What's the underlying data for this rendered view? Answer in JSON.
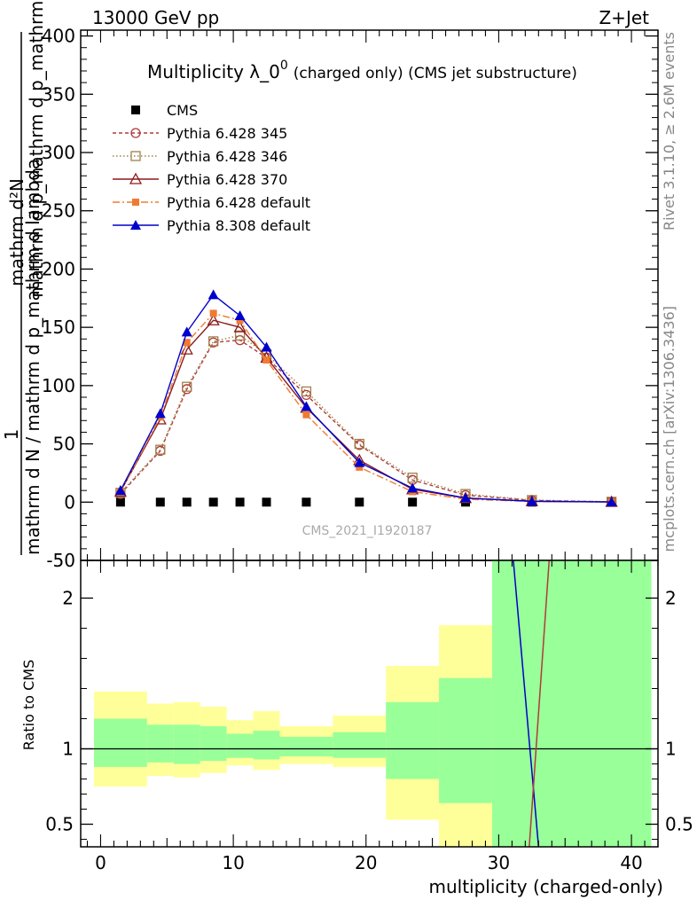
{
  "header": {
    "left": "13000 GeV pp",
    "right": "Z+Jet"
  },
  "side_labels": {
    "rivet": "Rivet 3.1.10, ≥ 2.6M events",
    "mcplots": "mcplots.cern.ch [arXiv:1306.3436]"
  },
  "watermark": "CMS_2021_I1920187",
  "chart_data": [
    {
      "type": "line",
      "title": "Multiplicity λ_0",
      "title_sup": "0",
      "subtitle": "(charged only) (CMS jet substructure)",
      "ylabel_top": "mathrm d²N",
      "ylabel_one": "1",
      "ylabel_bottom": "mathrm d N / mathrm d p_mathrm d lambda",
      "ylabel_overlap": "mathrm d p_mathrm d p_mathrm d lambda",
      "xlim": [
        -1.5,
        42
      ],
      "ylim": [
        -50,
        405
      ],
      "x_ticks": [
        0,
        10,
        20,
        30,
        40
      ],
      "y_ticks": [
        -50,
        0,
        50,
        100,
        150,
        200,
        250,
        300,
        350,
        400
      ],
      "y_minor_step": 10,
      "legend_position": "top-left",
      "series": [
        {
          "name": "CMS",
          "style": "data",
          "color": "#000000",
          "x": [
            1.5,
            4.5,
            6.5,
            8.5,
            10.5,
            12.5,
            15.5,
            19.5,
            23.5,
            27.5,
            32.5,
            38.5
          ],
          "values": [
            0,
            0,
            0,
            0,
            0,
            0,
            0,
            0,
            0,
            0,
            0,
            0
          ]
        },
        {
          "name": "Pythia 6.428 345",
          "style": "circle",
          "dash": "4,3",
          "color": "#b03a3a",
          "x": [
            1.5,
            4.5,
            6.5,
            8.5,
            10.5,
            12.5,
            15.5,
            19.5,
            23.5,
            27.5,
            32.5,
            38.5
          ],
          "values": [
            7,
            44,
            97,
            137,
            139,
            124,
            92,
            49,
            19,
            6,
            1.5,
            0.3
          ]
        },
        {
          "name": "Pythia 6.428 346",
          "style": "square-open",
          "dash": "1.5,2.5",
          "color": "#a0804a",
          "x": [
            1.5,
            4.5,
            6.5,
            8.5,
            10.5,
            12.5,
            15.5,
            19.5,
            23.5,
            27.5,
            32.5,
            38.5
          ],
          "values": [
            8,
            45,
            99,
            138,
            143,
            127,
            95,
            50,
            21,
            7,
            1.8,
            0.3
          ]
        },
        {
          "name": "Pythia 6.428 370",
          "style": "triangle-open",
          "dash": "",
          "color": "#8b1a1a",
          "x": [
            1.5,
            4.5,
            6.5,
            8.5,
            10.5,
            12.5,
            15.5,
            19.5,
            23.5,
            27.5,
            32.5,
            38.5
          ],
          "values": [
            9,
            71,
            131,
            156,
            150,
            124,
            81,
            36,
            11,
            3.5,
            0.8,
            0.2
          ]
        },
        {
          "name": "Pythia 6.428 default",
          "style": "square-filled",
          "dash": "8,3,2,3",
          "color": "#f07b30",
          "x": [
            1.5,
            4.5,
            6.5,
            8.5,
            10.5,
            12.5,
            15.5,
            19.5,
            23.5,
            27.5,
            32.5,
            38.5
          ],
          "values": [
            9,
            73,
            137,
            162,
            156,
            122,
            75,
            30,
            9,
            2.5,
            0.6,
            0.1
          ]
        },
        {
          "name": "Pythia 8.308 default",
          "style": "triangle-filled",
          "dash": "",
          "color": "#0000cc",
          "x": [
            1.5,
            4.5,
            6.5,
            8.5,
            10.5,
            12.5,
            15.5,
            19.5,
            23.5,
            27.5,
            32.5,
            38.5
          ],
          "values": [
            10,
            76,
            146,
            178,
            160,
            133,
            82,
            34,
            12,
            3.5,
            0.7,
            0.15
          ]
        }
      ]
    },
    {
      "type": "area",
      "ylabel": "Ratio to CMS",
      "xlabel": "multiplicity (charged-only)",
      "xlim": [
        -1.5,
        42
      ],
      "ylim": [
        0.35,
        2.25
      ],
      "x_ticks": [
        0,
        10,
        20,
        30,
        40
      ],
      "y_ticks": [
        0.5,
        1,
        2
      ],
      "bins": [
        {
          "lo": -0.5,
          "hi": 3.5,
          "y_lo": 0.75,
          "y_hi": 1.38,
          "g_lo": 0.88,
          "g_hi": 1.2
        },
        {
          "lo": 3.5,
          "hi": 5.5,
          "y_lo": 0.82,
          "y_hi": 1.3,
          "g_lo": 0.91,
          "g_hi": 1.16
        },
        {
          "lo": 5.5,
          "hi": 7.5,
          "y_lo": 0.81,
          "y_hi": 1.31,
          "g_lo": 0.9,
          "g_hi": 1.16
        },
        {
          "lo": 7.5,
          "hi": 9.5,
          "y_lo": 0.84,
          "y_hi": 1.28,
          "g_lo": 0.92,
          "g_hi": 1.15
        },
        {
          "lo": 9.5,
          "hi": 11.5,
          "y_lo": 0.89,
          "y_hi": 1.19,
          "g_lo": 0.94,
          "g_hi": 1.1
        },
        {
          "lo": 11.5,
          "hi": 13.5,
          "y_lo": 0.86,
          "y_hi": 1.25,
          "g_lo": 0.93,
          "g_hi": 1.12
        },
        {
          "lo": 13.5,
          "hi": 17.5,
          "y_lo": 0.9,
          "y_hi": 1.15,
          "g_lo": 0.95,
          "g_hi": 1.08
        },
        {
          "lo": 17.5,
          "hi": 21.5,
          "y_lo": 0.88,
          "y_hi": 1.22,
          "g_lo": 0.94,
          "g_hi": 1.11
        },
        {
          "lo": 21.5,
          "hi": 25.5,
          "y_lo": 0.53,
          "y_hi": 1.55,
          "g_lo": 0.8,
          "g_hi": 1.31
        },
        {
          "lo": 25.5,
          "hi": 29.5,
          "y_lo": 0.3,
          "y_hi": 1.82,
          "g_lo": 0.64,
          "g_hi": 1.47
        },
        {
          "lo": 29.5,
          "hi": 41.5,
          "y_lo": 0.3,
          "y_hi": 2.4,
          "g_lo": 0.3,
          "g_hi": 2.4
        }
      ],
      "ratio_lines": [
        {
          "name": "Pythia 8.308 default",
          "color": "#0000cc",
          "points": [
            [
              31.1,
              2.4
            ],
            [
              33.0,
              0.3
            ]
          ]
        },
        {
          "name": "Pythia 6.428 345",
          "color": "#b03a3a",
          "points": [
            [
              32.3,
              0.3
            ],
            [
              33.8,
              2.4
            ]
          ]
        }
      ]
    }
  ]
}
